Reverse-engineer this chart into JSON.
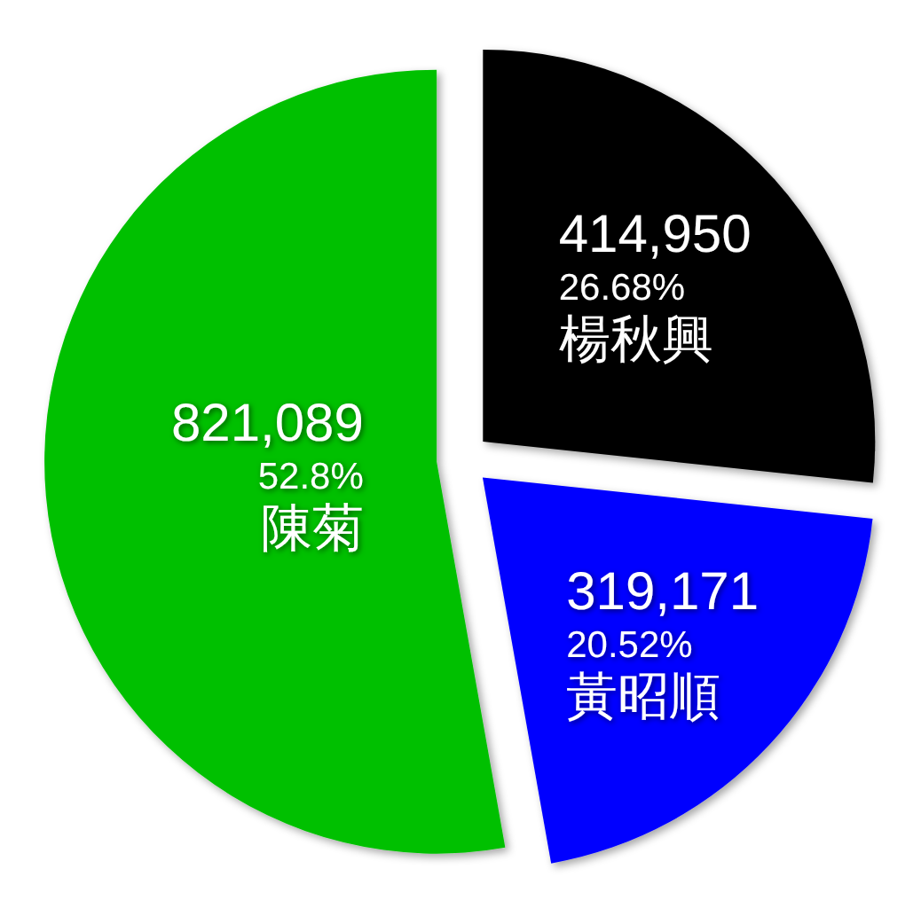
{
  "chart_data": {
    "type": "pie",
    "categories": [
      "楊秋興",
      "黃昭順",
      "陳菊"
    ],
    "values": [
      414950,
      319171,
      821089
    ],
    "colors": [
      "#000000",
      "#0000ff",
      "#00c000"
    ],
    "value_labels": [
      "414,950\n26.68%",
      "319,171\n20.52%",
      "821,089\n52.8%"
    ]
  }
}
